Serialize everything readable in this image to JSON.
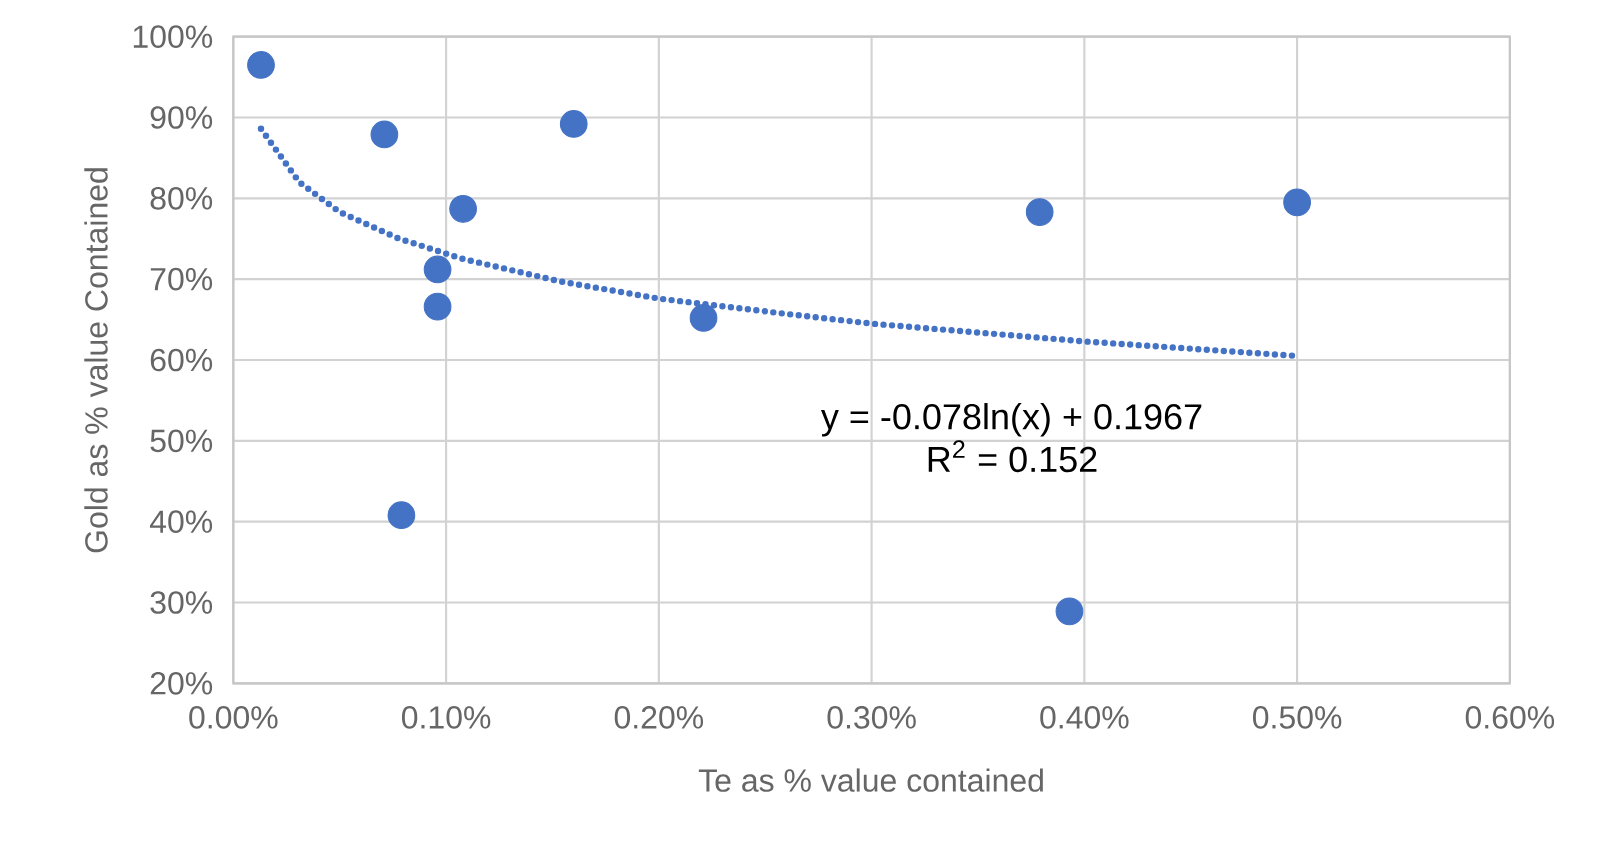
{
  "chart_data": {
    "type": "scatter",
    "xlabel": "Te as % value contained",
    "ylabel": "Gold as % value Contained",
    "xlim": [
      0,
      0.6
    ],
    "ylim": [
      20,
      100
    ],
    "xticks": [
      {
        "value": 0,
        "label": "0.00%"
      },
      {
        "value": 0.1,
        "label": "0.10%"
      },
      {
        "value": 0.2,
        "label": "0.20%"
      },
      {
        "value": 0.3,
        "label": "0.30%"
      },
      {
        "value": 0.4,
        "label": "0.40%"
      },
      {
        "value": 0.5,
        "label": "0.50%"
      },
      {
        "value": 0.6,
        "label": "0.60%"
      }
    ],
    "yticks": [
      {
        "value": 20,
        "label": "20%"
      },
      {
        "value": 30,
        "label": "30%"
      },
      {
        "value": 40,
        "label": "40%"
      },
      {
        "value": 50,
        "label": "50%"
      },
      {
        "value": 60,
        "label": "60%"
      },
      {
        "value": 70,
        "label": "70%"
      },
      {
        "value": 80,
        "label": "80%"
      },
      {
        "value": 90,
        "label": "90%"
      },
      {
        "value": 100,
        "label": "100%"
      }
    ],
    "grid": true,
    "series": [
      {
        "color": "#4472c4",
        "marker": "circle",
        "x": [
          0.013,
          0.071,
          0.16,
          0.108,
          0.096,
          0.096,
          0.221,
          0.079,
          0.379,
          0.5,
          0.393
        ],
        "values": [
          96.5,
          87.9,
          89.2,
          78.7,
          71.2,
          66.6,
          65.2,
          40.8,
          78.3,
          79.5,
          28.9
        ]
      },
      {
        "type": "line",
        "color": "#4472c4",
        "marker": "none",
        "line_style": "dotted",
        "x": [
          0.013,
          0.031,
          0.05,
          0.078,
          0.108,
          0.154,
          0.2,
          0.26,
          0.3,
          0.4,
          0.5
        ],
        "values": [
          88.6,
          82.0,
          78.3,
          75.0,
          72.5,
          69.7,
          67.6,
          65.7,
          64.5,
          62.3,
          60.5
        ]
      }
    ],
    "annotations": [
      "y = -0.078ln(x) + 0.1967",
      "R$^{2}$ = 0.152"
    ]
  }
}
